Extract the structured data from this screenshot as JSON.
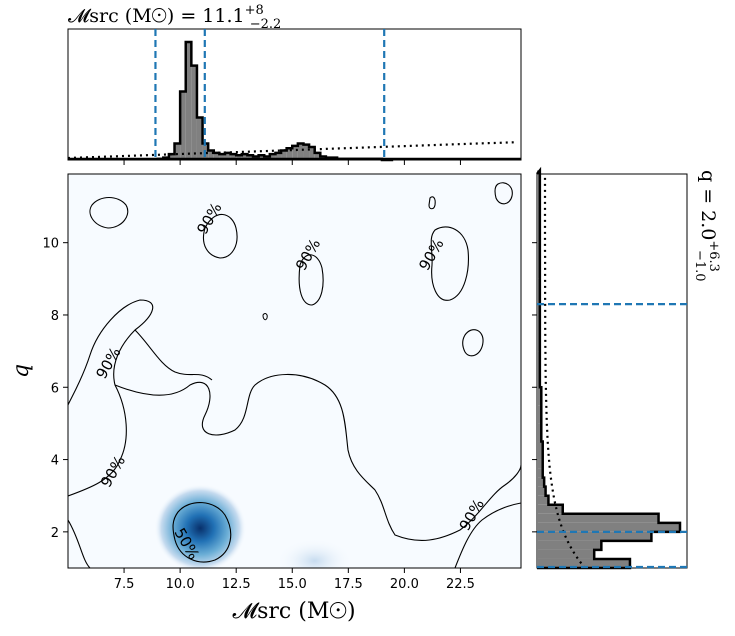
{
  "chart_data": [
    {
      "type": "heatmap",
      "panel": "joint",
      "xlabel": "𝓜src (M☉)",
      "ylabel": "q",
      "xlim": [
        5.0,
        25.2
      ],
      "ylim": [
        1.0,
        11.9
      ],
      "xticks": [
        7.5,
        10.0,
        12.5,
        15.0,
        17.5,
        20.0,
        22.5
      ],
      "xticklabels": [
        "7.5",
        "10.0",
        "12.5",
        "15.0",
        "17.5",
        "20.0",
        "22.5"
      ],
      "yticks": [
        2,
        4,
        6,
        8,
        10
      ],
      "yticklabels": [
        "2",
        "4",
        "6",
        "8",
        "10"
      ],
      "colormap": "Blues",
      "density_peak": {
        "x": 10.9,
        "y": 2.1
      },
      "secondary_density": {
        "x": 16.0,
        "y": 1.2
      },
      "contour_labels": [
        {
          "text": "90%",
          "x": 11.5,
          "y": 10.6
        },
        {
          "text": "90%",
          "x": 15.9,
          "y": 9.6
        },
        {
          "text": "90%",
          "x": 21.4,
          "y": 9.6
        },
        {
          "text": "90%",
          "x": 7.0,
          "y": 6.6
        },
        {
          "text": "90%",
          "x": 7.2,
          "y": 3.6
        },
        {
          "text": "90%",
          "x": 23.2,
          "y": 2.4
        },
        {
          "text": "50%",
          "x": 10.1,
          "y": 1.6
        }
      ]
    },
    {
      "type": "bar",
      "panel": "top-marginal",
      "title_main": "𝓜src (M☉) = 11.1",
      "title_sup": "+8",
      "title_sub": "−2.2",
      "median": 11.1,
      "interval": [
        8.9,
        19.1
      ],
      "bins": [
        9.0,
        9.25,
        9.5,
        9.75,
        10.0,
        10.25,
        10.5,
        10.75,
        11.0,
        11.25,
        11.5,
        11.75,
        12.0,
        12.25,
        12.5,
        12.75,
        13.0,
        13.25,
        13.5,
        13.75,
        14.0,
        14.25,
        14.5,
        14.75,
        15.0,
        15.25,
        15.5,
        15.75,
        16.0,
        16.25,
        16.5,
        16.75,
        17.0,
        17.25,
        17.5,
        17.75,
        18.0,
        18.25,
        18.5,
        18.75,
        19.0,
        19.25
      ],
      "values": [
        1,
        2,
        5,
        14,
        58,
        100,
        80,
        36,
        14,
        8,
        6,
        5,
        6,
        5,
        4,
        5,
        4,
        3,
        4,
        3,
        5,
        6,
        8,
        10,
        12,
        14,
        13,
        11,
        6,
        3,
        2,
        2,
        1,
        1,
        1,
        1,
        1,
        1,
        1,
        1,
        0,
        0
      ],
      "prior_line": "dotted"
    },
    {
      "type": "bar",
      "panel": "right-marginal",
      "title_main": "q = 2.0",
      "title_sup": "+6.3",
      "title_sub": "−1.0",
      "median": 2.0,
      "interval": [
        1.0,
        8.3
      ],
      "bins": [
        1.0,
        1.25,
        1.5,
        1.75,
        2.0,
        2.25,
        2.5,
        2.75,
        3.0,
        3.25,
        3.5,
        3.75,
        4.0,
        4.5,
        5.0,
        5.5,
        6.0,
        7.0,
        8.0,
        9.0,
        10.0,
        11.0
      ],
      "values": [
        65,
        40,
        45,
        80,
        100,
        85,
        18,
        8,
        6,
        5,
        4,
        4,
        4,
        3,
        3,
        3,
        2,
        2,
        2,
        2,
        2,
        2
      ],
      "prior_line": "dotted"
    }
  ]
}
